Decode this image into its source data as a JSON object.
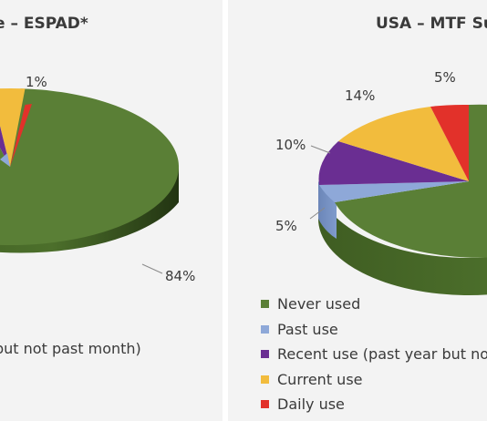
{
  "chart_data": [
    {
      "type": "pie",
      "title": "e – ESPAD*",
      "categories": [
        "Never used",
        "Past use",
        "Recent use (past year but not past month)",
        "Current use",
        "Daily use"
      ],
      "values": [
        84,
        null,
        null,
        null,
        1
      ],
      "colors": [
        "#5a7f36",
        "#8ea8d8",
        "#6a2e92",
        "#f2bc3d",
        "#e2312a"
      ],
      "labels": [
        {
          "text": "84%",
          "category": "Never used"
        },
        {
          "text": "1%",
          "category": "Daily use"
        }
      ],
      "legend_fragment": "but not past month)"
    },
    {
      "type": "pie",
      "title": "USA – MTF Su",
      "categories": [
        "Never used",
        "Past use",
        "Recent use (past year but not past month)",
        "Current use",
        "Daily use"
      ],
      "values": [
        null,
        5,
        10,
        14,
        5
      ],
      "colors": [
        "#5a7f36",
        "#8ea8d8",
        "#6a2e92",
        "#f2bc3d",
        "#e2312a"
      ],
      "labels": [
        {
          "text": "5%",
          "category": "Past use"
        },
        {
          "text": "10%",
          "category": "Recent use (past year but not past month)"
        },
        {
          "text": "14%",
          "category": "Current use"
        },
        {
          "text": "5%",
          "category": "Daily use"
        }
      ],
      "legend": {
        "placement": "bottom-left",
        "items": [
          {
            "label": "Never used",
            "color": "#5a7f36"
          },
          {
            "label": "Past use",
            "color": "#8ea8d8"
          },
          {
            "label": "Recent use (past year but not",
            "color": "#6a2e92"
          },
          {
            "label": "Current use",
            "color": "#f2bc3d"
          },
          {
            "label": "Daily use",
            "color": "#e2312a"
          }
        ]
      }
    }
  ]
}
